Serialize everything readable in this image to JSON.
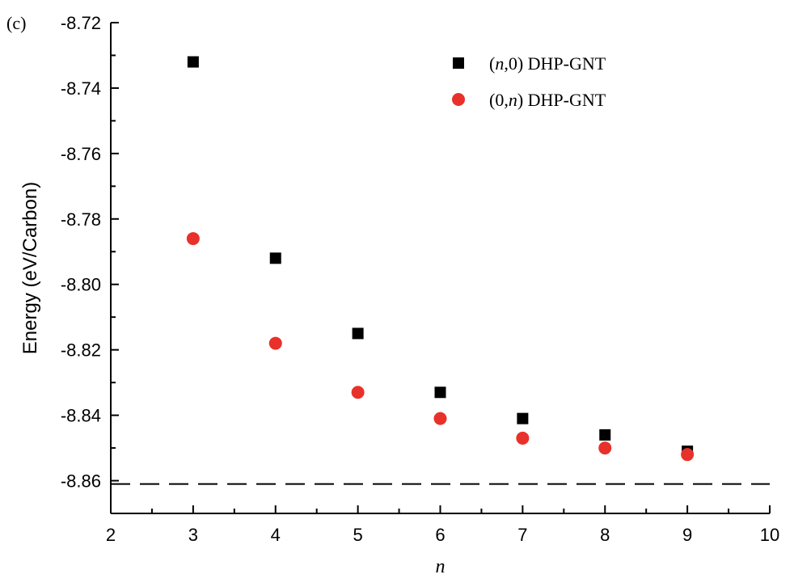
{
  "panel_label": "(c)",
  "chart_data": {
    "type": "scatter",
    "xlabel": "n",
    "ylabel": "Energy (eV/Carbon)",
    "xlim": [
      2,
      10
    ],
    "ylim": [
      -8.87,
      -8.72
    ],
    "x_ticks": [
      2,
      3,
      4,
      5,
      6,
      7,
      8,
      9,
      10
    ],
    "x_tick_labels": [
      "2",
      "3",
      "4",
      "5",
      "6",
      "7",
      "8",
      "9",
      "10"
    ],
    "y_ticks": [
      -8.72,
      -8.74,
      -8.76,
      -8.78,
      -8.8,
      -8.82,
      -8.84,
      -8.86
    ],
    "y_tick_labels": [
      "-8.72",
      "-8.74",
      "-8.76",
      "-8.78",
      "-8.80",
      "-8.82",
      "-8.84",
      "-8.86"
    ],
    "legend_position": "top-right",
    "series": [
      {
        "name": "(n,0) DHP-GNT",
        "legend_parts": [
          "(",
          "n",
          ",0) DHP-GNT"
        ],
        "marker": "square",
        "color": "#000000",
        "x": [
          3,
          4,
          5,
          6,
          7,
          8,
          9
        ],
        "y": [
          -8.732,
          -8.792,
          -8.815,
          -8.833,
          -8.841,
          -8.846,
          -8.851
        ]
      },
      {
        "name": "(0,n) DHP-GNT",
        "legend_parts": [
          "(0,",
          "n",
          ") DHP-GNT"
        ],
        "marker": "circle",
        "color": "#e8312a",
        "x": [
          3,
          4,
          5,
          6,
          7,
          8,
          9
        ],
        "y": [
          -8.786,
          -8.818,
          -8.833,
          -8.841,
          -8.847,
          -8.85,
          -8.852
        ]
      }
    ],
    "reference_line": {
      "y": -8.861,
      "style": "dashed",
      "color": "#000000"
    }
  }
}
